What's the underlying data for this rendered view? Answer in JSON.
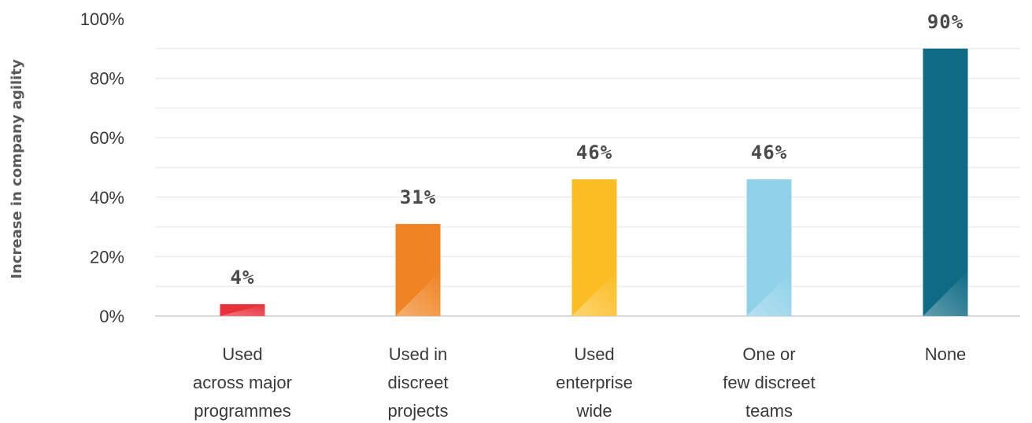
{
  "chart_data": {
    "type": "bar",
    "ylabel": "Increase in company agility",
    "xlabel": "",
    "ylim": [
      0,
      100
    ],
    "yticks": [
      "0%",
      "20%",
      "40%",
      "60%",
      "80%",
      "100%"
    ],
    "ytick_values": [
      0,
      20,
      40,
      60,
      80,
      100
    ],
    "grid": true,
    "categories": [
      [
        "Used",
        "across major",
        "programmes"
      ],
      [
        "Used in",
        "discreet",
        "projects"
      ],
      [
        "Used",
        "enterprise",
        "wide"
      ],
      [
        "One or",
        "few discreet",
        "teams"
      ],
      [
        "None"
      ]
    ],
    "values": [
      4,
      31,
      46,
      46,
      90
    ],
    "data_labels": [
      "4%",
      "31%",
      "46%",
      "46%",
      "90%"
    ],
    "colors": [
      "#e8303a",
      "#f08424",
      "#fbbd24",
      "#8fd1e8",
      "#0f6b84"
    ]
  }
}
